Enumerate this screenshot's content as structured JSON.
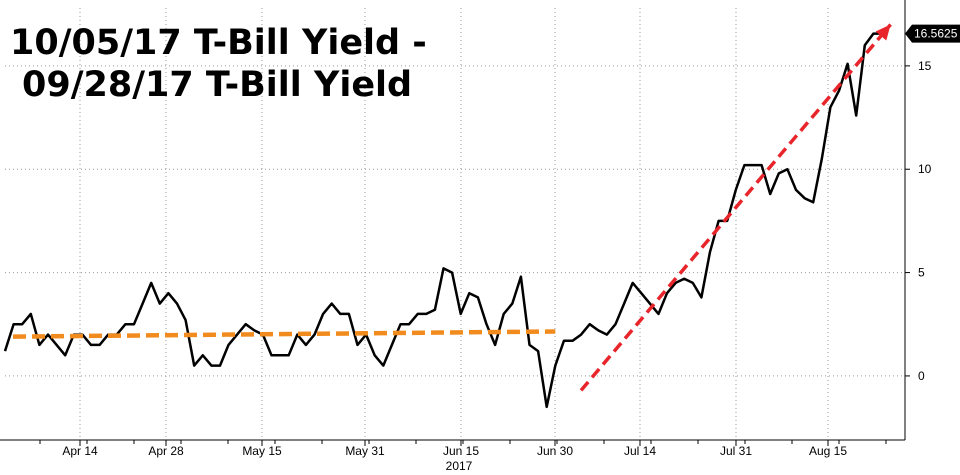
{
  "chart_data": {
    "type": "line",
    "title_lines": [
      "10/05/17 T-Bill Yield -",
      "09/28/17 T-Bill Yield"
    ],
    "x_tick_labels": [
      "Apr 14",
      "Apr 28",
      "May 15",
      "May 31",
      "Jun 15",
      "Jun 30",
      "Jul 14",
      "Jul 31",
      "Aug 15"
    ],
    "x_year_label": "2017",
    "y_tick_labels": [
      "0",
      "5",
      "10",
      "15"
    ],
    "y_ticks": [
      0,
      5,
      10,
      15
    ],
    "ylim": [
      -3.1,
      17.8
    ],
    "last_value_label": "16.5625",
    "grid": true,
    "colors": {
      "series": "#000000",
      "trend_flat": "#f28b1e",
      "trend_up": "#e8252b",
      "badge": "#000000"
    },
    "series": [
      {
        "values": [
          1.2,
          2.5,
          2.5,
          3.0,
          1.5,
          2.0,
          1.5,
          1.0,
          2.0,
          2.0,
          1.5,
          1.5,
          2.0,
          2.0,
          2.5,
          2.5,
          3.5,
          4.5,
          3.5,
          4.0,
          3.5,
          2.7,
          0.5,
          1.0,
          0.5,
          0.5,
          1.5,
          2.0,
          2.5,
          2.2,
          2.0,
          1.0,
          1.0,
          1.0,
          2.0,
          1.5,
          2.0,
          3.0,
          3.5,
          3.0,
          3.0,
          1.5,
          2.0,
          1.0,
          0.5,
          1.5,
          2.5,
          2.5,
          3.0,
          3.0,
          3.2,
          5.2,
          5.0,
          3.0,
          4.0,
          3.8,
          2.5,
          1.5,
          3.0,
          3.5,
          4.8,
          1.5,
          1.2,
          -1.5,
          0.5,
          1.7,
          1.7,
          2.0,
          2.5,
          2.2,
          2.0,
          2.5,
          3.5,
          4.5,
          4.0,
          3.5,
          3.0,
          4.0,
          4.5,
          4.7,
          4.5,
          3.8,
          6.0,
          7.5,
          7.5,
          9.0,
          10.2,
          10.2,
          10.2,
          8.8,
          9.8,
          10.0,
          9.0,
          8.6,
          8.4,
          10.5,
          13.0,
          13.8,
          15.1,
          12.6,
          16.0,
          16.56,
          16.56
        ]
      }
    ],
    "trend_lines": [
      {
        "name_hidden": "flat",
        "from_index": 0,
        "to_index": 64,
        "from_value": 1.9,
        "to_value": 2.15
      },
      {
        "name_hidden": "up",
        "from_index": 67,
        "to_index": 103,
        "from_value": -0.7,
        "to_value": 17.0
      }
    ]
  }
}
